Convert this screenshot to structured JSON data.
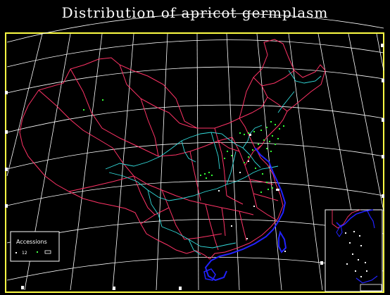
{
  "title": "Distribution of apricot germplasm",
  "legend": {
    "title": "Accessions",
    "count_label": "12",
    "marker_color": "#44ff44"
  },
  "colors": {
    "background": "#000000",
    "frame": "#ffff44",
    "graticule": "#ffffff",
    "province_border": "#ff3366",
    "river": "#33dddd",
    "coastline": "#2222ff",
    "points": "#33ff33"
  },
  "layers": [
    "graticule",
    "province-borders",
    "rivers",
    "coastline",
    "accession-points",
    "south-china-sea-inset"
  ]
}
